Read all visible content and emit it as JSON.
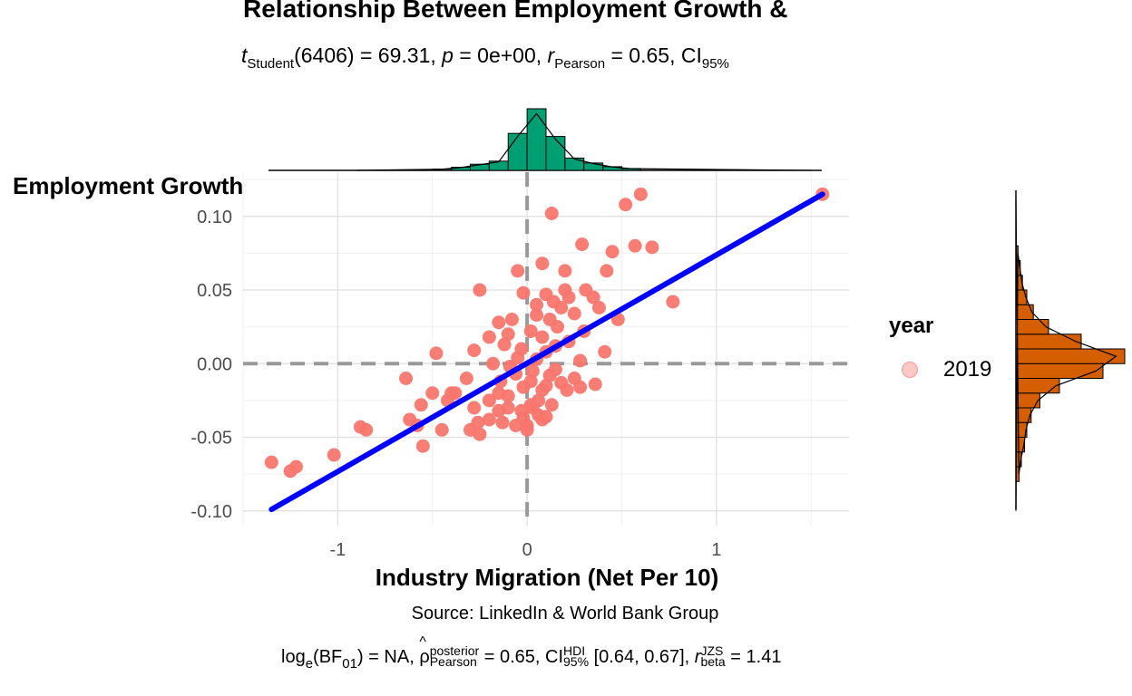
{
  "title": "Relationship Between Employment Growth &",
  "subtitle": {
    "t": "t",
    "t_sub": "Student",
    "df_stat": "(6406) = 69.31, ",
    "p_sym": "p",
    "p_val": " = 0e+00, ",
    "r_sym": "r",
    "r_sub": "Pearson",
    "r_val": " = 0.65, CI",
    "ci_sub": "95%"
  },
  "caption": "Source: LinkedIn & World Bank Group",
  "bayes": {
    "part1": "log",
    "part1_sub": "e",
    "part2": "(BF",
    "part2_sub": "01",
    "part3": ") = NA, ",
    "rho_sym": "ρ",
    "rho_sup": "posterior",
    "rho_sub": "Pearson",
    "part4": " = 0.65, CI",
    "ci_sup": "HDI",
    "ci_sub": "95%",
    "part5": " [0.64, 0.67], ",
    "r_sym": "r",
    "r_sup": "JZS",
    "r_sub": "beta",
    "part6": " = 1.41"
  },
  "legend": {
    "title": "year",
    "label": "2019"
  },
  "chart_data": {
    "type": "scatter",
    "xlabel": "Industry Migration (Net Per 10)",
    "ylabel": "Employment Growth",
    "xlim": [
      -1.5,
      1.7
    ],
    "ylim": [
      -0.11,
      0.13
    ],
    "xticks": [
      -1,
      0,
      1
    ],
    "yticks": [
      -0.1,
      -0.05,
      0.0,
      0.05,
      0.1
    ],
    "xtick_labels": [
      "-1",
      "0",
      "1"
    ],
    "ytick_labels": [
      "-0.10",
      "-0.05",
      "0.00",
      "0.05",
      "0.10"
    ],
    "grid": true,
    "legend_position": "right",
    "point_color": "#F8766D",
    "line_color": "#0000FF",
    "reference_line_color": "#999999",
    "top_hist_color": "#009E73",
    "right_hist_color": "#D55E00",
    "regression": {
      "x": [
        -1.35,
        1.56
      ],
      "y": [
        -0.099,
        0.115
      ]
    },
    "points": {
      "x": [
        1.56,
        0.6,
        0.52,
        0.13,
        0.66,
        0.45,
        0.29,
        0.57,
        0.08,
        0.2,
        -0.25,
        0.42,
        0.77,
        -0.05,
        0.2,
        0.31,
        0.22,
        0.14,
        0.35,
        -0.02,
        0.1,
        0.18,
        0.05,
        0.12,
        0.38,
        -0.15,
        -0.08,
        0.25,
        0.05,
        0.48,
        0.02,
        0.16,
        -0.1,
        0.3,
        -0.2,
        0.08,
        0.22,
        -0.12,
        0.15,
        -0.03,
        0.1,
        -0.48,
        -0.28,
        0.41,
        -0.05,
        0.05,
        -0.18,
        0.28,
        -0.09,
        0.15,
        0.03,
        0.12,
        -0.06,
        0.25,
        -0.14,
        0.02,
        0.18,
        -0.02,
        0.08,
        0.36,
        -0.32,
        -0.1,
        0.06,
        -0.56,
        -0.2,
        -0.4,
        0.28,
        -0.28,
        0.03,
        -0.15,
        0.1,
        0.21,
        -0.26,
        -0.13,
        -0.06,
        0.08,
        -0.45,
        -0.64,
        -0.5,
        -0.38,
        -0.62,
        -0.58,
        -0.3,
        -0.2,
        0.06,
        -0.15,
        0.13,
        -0.03,
        -0.25,
        0.0,
        -0.02,
        -0.55,
        -0.88,
        -0.85,
        -1.02,
        -1.35,
        -1.22,
        -1.25,
        -0.42,
        -0.1,
        0.0,
        0.02,
        0.1
      ],
      "y": [
        0.115,
        0.115,
        0.108,
        0.102,
        0.079,
        0.076,
        0.081,
        0.08,
        0.068,
        0.063,
        0.05,
        0.063,
        0.042,
        0.063,
        0.05,
        0.05,
        0.045,
        0.042,
        0.045,
        0.048,
        0.047,
        0.038,
        0.04,
        0.03,
        0.038,
        0.028,
        0.03,
        0.034,
        0.033,
        0.03,
        0.022,
        0.025,
        0.02,
        0.022,
        0.018,
        0.018,
        0.015,
        0.013,
        0.012,
        0.01,
        0.008,
        0.007,
        0.009,
        0.008,
        0.004,
        0.003,
        0.0,
        0.002,
        -0.002,
        -0.004,
        -0.005,
        -0.008,
        -0.007,
        -0.01,
        -0.012,
        -0.012,
        -0.013,
        -0.016,
        -0.018,
        -0.014,
        -0.01,
        -0.022,
        -0.025,
        -0.028,
        -0.025,
        -0.02,
        -0.016,
        -0.03,
        -0.03,
        -0.032,
        -0.036,
        -0.018,
        -0.04,
        -0.04,
        -0.042,
        -0.038,
        -0.045,
        -0.01,
        -0.02,
        -0.02,
        -0.038,
        -0.042,
        -0.045,
        -0.038,
        -0.035,
        -0.02,
        -0.028,
        -0.032,
        -0.048,
        -0.045,
        -0.037,
        -0.056,
        -0.043,
        -0.045,
        -0.062,
        -0.067,
        -0.07,
        -0.073,
        -0.025,
        -0.03,
        -0.042,
        -0.028,
        -0.015
      ]
    },
    "top_marginal": {
      "bins": [
        -0.5,
        -0.4,
        -0.3,
        -0.2,
        -0.1,
        0.0,
        0.1,
        0.2,
        0.3,
        0.4,
        0.5,
        0.6
      ],
      "heights": [
        0.02,
        0.05,
        0.1,
        0.15,
        0.6,
        1.0,
        0.55,
        0.2,
        0.12,
        0.06,
        0.03
      ]
    },
    "right_marginal": {
      "bins": [
        -0.08,
        -0.07,
        -0.06,
        -0.05,
        -0.04,
        -0.03,
        -0.02,
        -0.01,
        0.0,
        0.01,
        0.02,
        0.03,
        0.04,
        0.05,
        0.06,
        0.07,
        0.08
      ],
      "heights": [
        0.03,
        0.05,
        0.08,
        0.1,
        0.14,
        0.22,
        0.4,
        0.8,
        1.0,
        0.6,
        0.3,
        0.16,
        0.1,
        0.06,
        0.04,
        0.02
      ]
    }
  }
}
